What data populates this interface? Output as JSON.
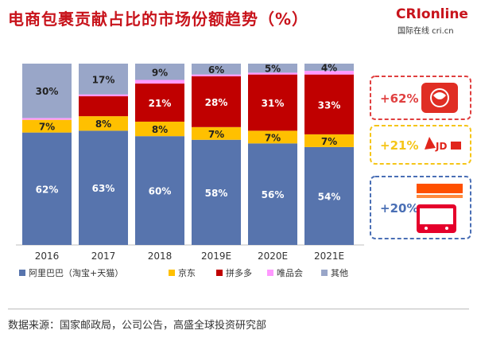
{
  "title": "电商包裹贡献占比的市场份额趋势（%）",
  "logo": {
    "main": "CRIonline",
    "sub": "国际在线 cri.cn"
  },
  "source": "数据来源：国家邮政局，公司公告，高盛全球投资研究部",
  "colors": {
    "alibaba": "#5774ad",
    "jd": "#ffc000",
    "pdd": "#c00000",
    "vip": "#ff99ff",
    "other": "#99a6c8",
    "box_red": "#e04040",
    "box_yellow": "#f5c518",
    "box_blue": "#4a6fb5"
  },
  "chart_data": {
    "type": "bar",
    "stacked": true,
    "ylim": [
      0,
      100
    ],
    "categories": [
      "2016",
      "2017",
      "2018",
      "2019E",
      "2020E",
      "2021E"
    ],
    "series": [
      {
        "name": "阿里巴巴（淘宝+天猫）",
        "color": "#5774ad",
        "values": [
          62,
          63,
          60,
          58,
          56,
          54
        ],
        "labels": [
          "62%",
          "63%",
          "60%",
          "58%",
          "56%",
          "54%"
        ]
      },
      {
        "name": "京东",
        "color": "#ffc000",
        "values": [
          7,
          8,
          8,
          7,
          7,
          7
        ],
        "labels": [
          "7%",
          "8%",
          "8%",
          "7%",
          "7%",
          "7%"
        ]
      },
      {
        "name": "拼多多",
        "color": "#c00000",
        "values": [
          0,
          11,
          21,
          28,
          31,
          33
        ],
        "labels": [
          "",
          "",
          "21%",
          "28%",
          "31%",
          "33%"
        ]
      },
      {
        "name": "唯品会",
        "color": "#ff99ff",
        "values": [
          1,
          1,
          2,
          1,
          1,
          2
        ],
        "labels": [
          "",
          "",
          "",
          "",
          "",
          ""
        ]
      },
      {
        "name": "其他",
        "color": "#99a6c8",
        "values": [
          30,
          17,
          9,
          6,
          5,
          4
        ],
        "labels": [
          "30%",
          "17%",
          "9%",
          "6%",
          "5%",
          "4%"
        ]
      }
    ],
    "annotations": [
      {
        "label": "+62%",
        "brand": "拼多多",
        "border": "#e04040",
        "text_color": "#e04040"
      },
      {
        "label": "+21%",
        "brand": "JD.com",
        "border": "#f5c518",
        "text_color": "#f5c518"
      },
      {
        "label": "+20%",
        "brand": "淘宝网 Taobao.com / 天猫",
        "border": "#4a6fb5",
        "text_color": "#4a6fb5"
      }
    ],
    "legend_position": "bottom"
  }
}
